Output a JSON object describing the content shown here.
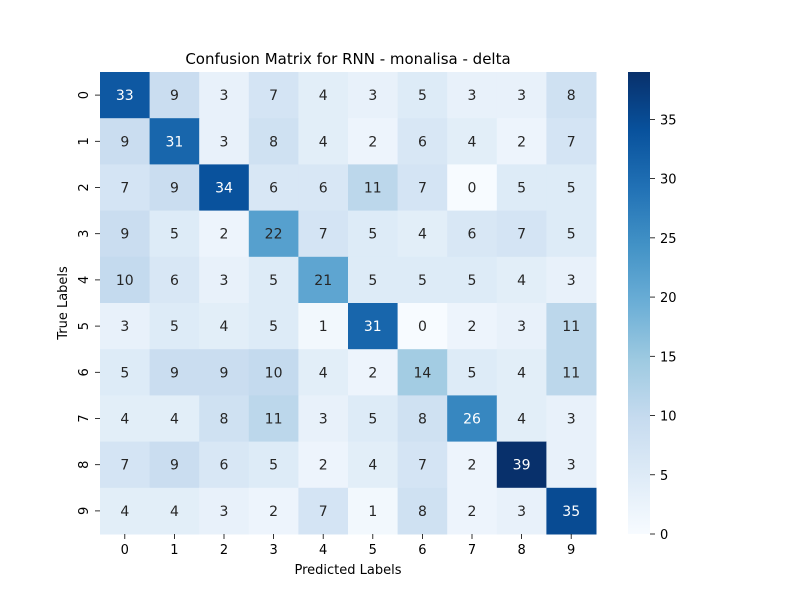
{
  "chart_data": {
    "type": "heatmap",
    "title": "Confusion Matrix for RNN - monalisa - delta",
    "xlabel": "Predicted Labels",
    "ylabel": "True Labels",
    "x_categories": [
      "0",
      "1",
      "2",
      "3",
      "4",
      "5",
      "6",
      "7",
      "8",
      "9"
    ],
    "y_categories": [
      "0",
      "1",
      "2",
      "3",
      "4",
      "5",
      "6",
      "7",
      "8",
      "9"
    ],
    "values": [
      [
        33,
        9,
        3,
        7,
        4,
        3,
        5,
        3,
        3,
        8
      ],
      [
        9,
        31,
        3,
        8,
        4,
        2,
        6,
        4,
        2,
        7
      ],
      [
        7,
        9,
        34,
        6,
        6,
        11,
        7,
        0,
        5,
        5
      ],
      [
        9,
        5,
        2,
        22,
        7,
        5,
        4,
        6,
        7,
        5
      ],
      [
        10,
        6,
        3,
        5,
        21,
        5,
        5,
        5,
        4,
        3
      ],
      [
        3,
        5,
        4,
        5,
        1,
        31,
        0,
        2,
        3,
        11
      ],
      [
        5,
        9,
        9,
        10,
        4,
        2,
        14,
        5,
        4,
        11
      ],
      [
        4,
        4,
        8,
        11,
        3,
        5,
        8,
        26,
        4,
        3
      ],
      [
        7,
        9,
        6,
        5,
        2,
        4,
        7,
        2,
        39,
        3
      ],
      [
        4,
        4,
        3,
        2,
        7,
        1,
        8,
        2,
        3,
        35
      ]
    ],
    "colorbar": {
      "range": [
        0,
        39
      ],
      "ticks": [
        "0",
        "5",
        "10",
        "15",
        "20",
        "25",
        "30",
        "35"
      ],
      "colormap": "Blues"
    },
    "annotations": true
  }
}
